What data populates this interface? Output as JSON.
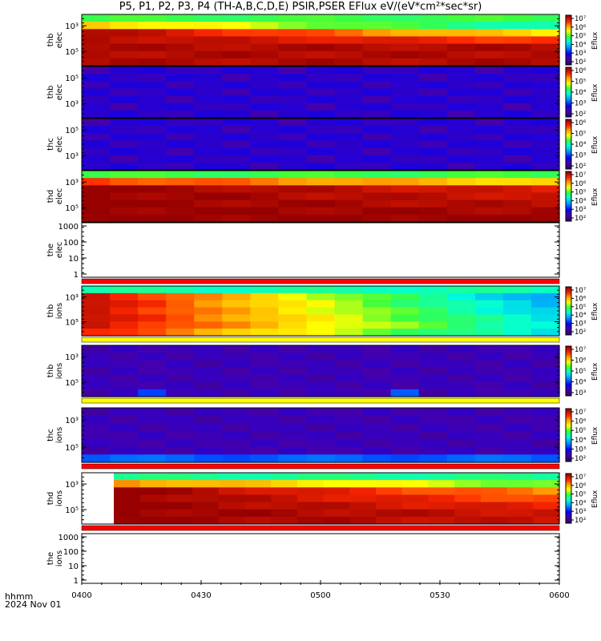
{
  "title": "P5, P1, P2, P3, P4 (TH-A,B,C,D,E) PSIR,PSER EFlux eV/(eV*cm²*sec*sr)",
  "footer": {
    "line1": "hhmm",
    "line2": "2024 Nov 01"
  },
  "colors": {
    "frame": "#000000",
    "red_band": "#ff0000",
    "yellow_band": "#ffff00"
  },
  "chart_data": {
    "type": "heatmap",
    "x_axis": {
      "ticks": [
        "0400",
        "0430",
        "0500",
        "0530",
        "0600"
      ],
      "range": [
        "0400",
        "0600"
      ],
      "label": "hhmm",
      "date": "2024 Nov 01"
    },
    "colorbar": {
      "label": "Eflux",
      "scale": "log",
      "ticks": [
        "10²",
        "10³",
        "10⁴",
        "10⁵",
        "10⁶",
        "10⁷"
      ]
    },
    "panels": [
      {
        "label": [
          "thb",
          "elec"
        ],
        "kind": "spectrogram",
        "pattern": "hot",
        "yticks": [
          "10³",
          "10⁵"
        ],
        "colorbar_ticks": [
          "10²",
          "10³",
          "10⁴",
          "10⁵",
          "10⁶",
          "10⁷"
        ]
      },
      {
        "label": [
          "thb",
          "elec"
        ],
        "kind": "spectrogram",
        "pattern": "quiet",
        "yticks": [
          "10⁵",
          "10³"
        ],
        "colorbar_ticks": [
          "10²",
          "10³",
          "10⁴",
          "10⁵",
          "10⁶"
        ]
      },
      {
        "label": [
          "thc",
          "elec"
        ],
        "kind": "spectrogram",
        "pattern": "quiet",
        "yticks": [
          "10⁵",
          "10³"
        ],
        "colorbar_ticks": [
          "10²",
          "10³",
          "10⁴",
          "10⁵",
          "10⁶"
        ]
      },
      {
        "label": [
          "thd",
          "elec"
        ],
        "kind": "spectrogram",
        "pattern": "veryhot",
        "yticks": [
          "10³",
          "10⁵"
        ],
        "colorbar_ticks": [
          "10²",
          "10³",
          "10⁴",
          "10⁵",
          "10⁶",
          "10⁷"
        ]
      },
      {
        "label": [
          "the",
          "elec"
        ],
        "kind": "empty",
        "yticks": [
          "1000",
          "100",
          "10",
          "1"
        ],
        "band_after": "red"
      },
      {
        "label": [
          "thb",
          "ions"
        ],
        "kind": "spectrogram",
        "pattern": "ionhot",
        "yticks": [
          "10³",
          "10⁵"
        ],
        "colorbar_ticks": [
          "10²",
          "10³",
          "10⁴",
          "10⁵",
          "10⁶",
          "10⁷"
        ],
        "band_after": "yellow"
      },
      {
        "label": [
          "thb",
          "ions"
        ],
        "kind": "spectrogram",
        "pattern": "ionquiet",
        "yticks": [
          "10³",
          "10⁵"
        ],
        "colorbar_ticks": [
          "10³",
          "10⁴",
          "10⁵",
          "10⁶",
          "10⁷"
        ],
        "band_after": "yellow"
      },
      {
        "label": [
          "thc",
          "ions"
        ],
        "kind": "spectrogram",
        "pattern": "ionquiet2",
        "yticks": [
          "10³",
          "10⁵"
        ],
        "colorbar_ticks": [
          "10²",
          "10³",
          "10⁴",
          "10⁵",
          "10⁶",
          "10⁷"
        ],
        "band_after": "red"
      },
      {
        "label": [
          "thd",
          "ions"
        ],
        "kind": "spectrogram",
        "pattern": "ionhot2",
        "yticks": [
          "10³",
          "10⁵"
        ],
        "colorbar_ticks": [
          "10²",
          "10³",
          "10⁴",
          "10⁵",
          "10⁶",
          "10⁷"
        ],
        "band_after": "red"
      },
      {
        "label": [
          "the",
          "ions"
        ],
        "kind": "empty",
        "yticks": [
          "1000",
          "100",
          "10",
          "1"
        ]
      }
    ]
  }
}
